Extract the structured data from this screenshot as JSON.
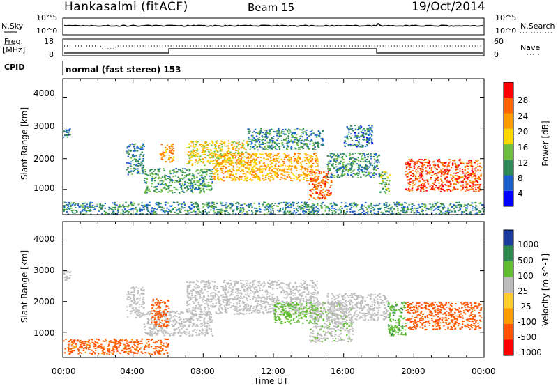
{
  "header": {
    "station": "Hankasalmi (fitACF)",
    "beam": "Beam 15",
    "date": "19/Oct/2014"
  },
  "strip": {
    "nsky_label": "N.Sky",
    "nsearch_label": "N.Search",
    "noise_ticks": [
      "10^5",
      "10^0"
    ],
    "freq_label_1": "Freq.",
    "freq_label_2": "[MHz]",
    "freq_ticks": [
      "18",
      "8"
    ],
    "nave_label": "Nave",
    "nave_ticks": [
      "60",
      "0"
    ],
    "cpid_label": "CPID",
    "cpid_text": "normal (fast stereo) 153"
  },
  "axes": {
    "ylabel": "Slant Range [km]",
    "yticks": [
      "4000",
      "3000",
      "2000",
      "1000"
    ],
    "xlabel": "Time UT",
    "xticks": [
      "00:00",
      "04:00",
      "08:00",
      "12:00",
      "16:00",
      "20:00",
      "00:00"
    ]
  },
  "colors": {
    "power_scale": [
      "#0000ff",
      "#1a5fd0",
      "#2e8b57",
      "#6fbf3f",
      "#ffd700",
      "#ff9900",
      "#ff6600",
      "#ff0000"
    ],
    "velocity_scale": [
      "#1a3aa0",
      "#2d8a4e",
      "#5fbf2f",
      "#bdbdbd",
      "#ffcc33",
      "#ff9900",
      "#ff5500",
      "#ff0000"
    ],
    "ground_scatter": "#bdbdbd"
  },
  "chart_data": [
    {
      "type": "heatmap",
      "title": "",
      "xlabel": "Time UT",
      "ylabel": "Slant Range [km]",
      "xlim": [
        0,
        24
      ],
      "ylim": [
        180,
        4600
      ],
      "colorbar_label": "Power [dB]",
      "colorbar_ticks": [
        "28",
        "24",
        "20",
        "16",
        "12",
        "8",
        "4"
      ],
      "colorbar_range": [
        0,
        30
      ],
      "regions": [
        {
          "t": [
            0.0,
            0.4
          ],
          "r": [
            2700,
            3000
          ],
          "value": 6
        },
        {
          "t": [
            3.6,
            4.6
          ],
          "r": [
            1500,
            2500
          ],
          "value": 7
        },
        {
          "t": [
            4.6,
            8.5
          ],
          "r": [
            900,
            1700
          ],
          "value": 10
        },
        {
          "t": [
            5.5,
            6.3
          ],
          "r": [
            1900,
            2500
          ],
          "value": 22
        },
        {
          "t": [
            7.0,
            10.5
          ],
          "r": [
            1800,
            2600
          ],
          "value": 17
        },
        {
          "t": [
            8.5,
            14.5
          ],
          "r": [
            1300,
            2200
          ],
          "value": 20
        },
        {
          "t": [
            10.5,
            14.8
          ],
          "r": [
            2300,
            3000
          ],
          "value": 8
        },
        {
          "t": [
            14.0,
            15.3
          ],
          "r": [
            700,
            1600
          ],
          "value": 26
        },
        {
          "t": [
            15.0,
            18.0
          ],
          "r": [
            1400,
            2200
          ],
          "value": 9
        },
        {
          "t": [
            16.0,
            17.6
          ],
          "r": [
            2400,
            3100
          ],
          "value": 6
        },
        {
          "t": [
            18.0,
            18.6
          ],
          "r": [
            900,
            1600
          ],
          "value": 12
        },
        {
          "t": [
            19.5,
            23.8
          ],
          "r": [
            950,
            2000
          ],
          "value": 27
        },
        {
          "t": [
            0.0,
            24.0
          ],
          "r": [
            200,
            600
          ],
          "value": 8
        }
      ]
    },
    {
      "type": "heatmap",
      "title": "",
      "xlabel": "Time UT",
      "ylabel": "Slant Range [km]",
      "xlim": [
        0,
        24
      ],
      "ylim": [
        180,
        4600
      ],
      "colorbar_label": "Velocity [m s^-1]",
      "colorbar_ticks": [
        "1000",
        "500",
        "100",
        "25",
        "-25",
        "-100",
        "-500",
        "-1000"
      ],
      "colorbar_range": [
        -1000,
        1000
      ],
      "regions": [
        {
          "t": [
            0.0,
            0.4
          ],
          "r": [
            2700,
            3000
          ],
          "value": 0,
          "ground_scatter": true
        },
        {
          "t": [
            3.6,
            4.6
          ],
          "r": [
            1500,
            2500
          ],
          "value": 0,
          "ground_scatter": true
        },
        {
          "t": [
            4.6,
            8.5
          ],
          "r": [
            900,
            1700
          ],
          "value": 0,
          "ground_scatter": true
        },
        {
          "t": [
            5.0,
            6.0
          ],
          "r": [
            1200,
            2100
          ],
          "value": -200
        },
        {
          "t": [
            7.0,
            14.5
          ],
          "r": [
            1600,
            2700
          ],
          "value": 0,
          "ground_scatter": true
        },
        {
          "t": [
            12.0,
            14.5
          ],
          "r": [
            1300,
            2000
          ],
          "value": 150
        },
        {
          "t": [
            14.0,
            16.5
          ],
          "r": [
            700,
            2000
          ],
          "value": 80
        },
        {
          "t": [
            15.0,
            18.5
          ],
          "r": [
            1400,
            2300
          ],
          "value": 0,
          "ground_scatter": true
        },
        {
          "t": [
            18.5,
            19.5
          ],
          "r": [
            900,
            2000
          ],
          "value": 400
        },
        {
          "t": [
            19.5,
            23.8
          ],
          "r": [
            1100,
            2000
          ],
          "value": -250
        },
        {
          "t": [
            0.0,
            6.0
          ],
          "r": [
            300,
            800
          ],
          "value": -150
        }
      ]
    }
  ]
}
